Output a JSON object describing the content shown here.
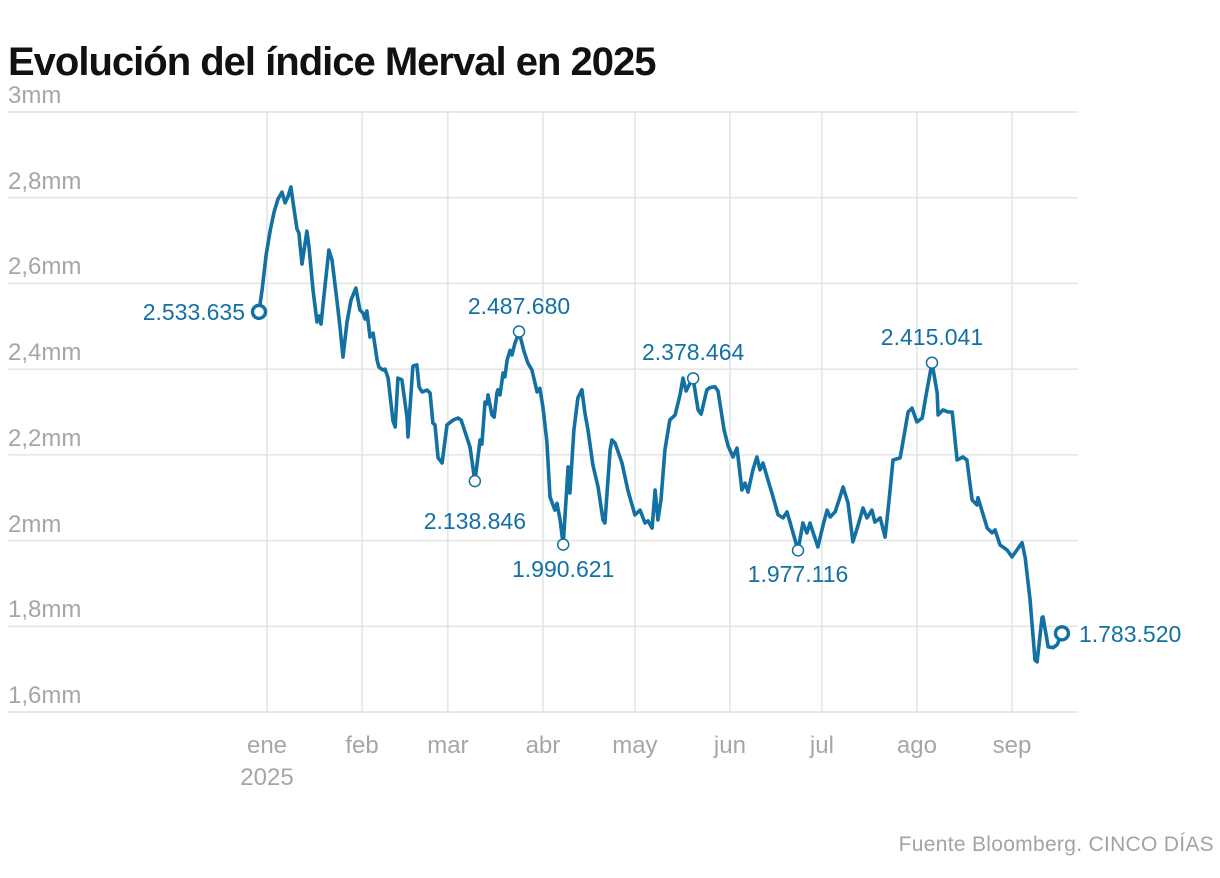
{
  "title": "Evolución del índice Merval en 2025",
  "source": "Fuente Bloomberg. CINCO DÍAS",
  "colors": {
    "line": "#1270a3",
    "annotation_text": "#1270a3",
    "grid": "#e2e2e2",
    "tick_text": "#a6a6a6",
    "title_text": "#111111",
    "source_text": "#a3a3a3",
    "background": "#ffffff",
    "marker_fill": "#ffffff"
  },
  "chart_data": {
    "type": "line",
    "title": "Evolución del índice Merval en 2025",
    "series_name": "Índice Merval",
    "y_axis": {
      "min": 1.6,
      "max": 3.0,
      "grid": true,
      "ticks": [
        {
          "label": "3mm",
          "value": 3.0
        },
        {
          "label": "2,8mm",
          "value": 2.8
        },
        {
          "label": "2,6mm",
          "value": 2.6
        },
        {
          "label": "2,4mm",
          "value": 2.4
        },
        {
          "label": "2,2mm",
          "value": 2.2
        },
        {
          "label": "2mm",
          "value": 2.0
        },
        {
          "label": "1,8mm",
          "value": 1.8
        },
        {
          "label": "1,6mm",
          "value": 1.6
        }
      ]
    },
    "x_axis": {
      "grid": true,
      "ticks": [
        {
          "label": "ene",
          "sublabel": "2025",
          "day": 0
        },
        {
          "label": "feb",
          "day": 31
        },
        {
          "label": "mar",
          "day": 59
        },
        {
          "label": "abr",
          "day": 90
        },
        {
          "label": "may",
          "day": 120
        },
        {
          "label": "jun",
          "day": 151
        },
        {
          "label": "jul",
          "day": 181
        },
        {
          "label": "ago",
          "day": 212
        },
        {
          "label": "sep",
          "day": 243
        }
      ]
    },
    "annotations": [
      {
        "text": "2.533.635",
        "day": -2.6,
        "value": 2.5336,
        "pos": "left",
        "endpoint": true
      },
      {
        "text": "2.487.680",
        "day": 82.2,
        "value": 2.4877,
        "pos": "above"
      },
      {
        "text": "2.138.846",
        "day": 67.8,
        "value": 2.1388,
        "pos": "below",
        "dy": 16
      },
      {
        "text": "1.990.621",
        "day": 96.6,
        "value": 1.9906,
        "pos": "below"
      },
      {
        "text": "2.378.464",
        "day": 139.0,
        "value": 2.3785,
        "pos": "above"
      },
      {
        "text": "1.977.116",
        "day": 173.2,
        "value": 1.9771,
        "pos": "below"
      },
      {
        "text": "2.415.041",
        "day": 216.9,
        "value": 2.415,
        "pos": "above"
      },
      {
        "text": "1.783.520",
        "day": 259.3,
        "value": 1.7835,
        "pos": "right",
        "endpoint": true
      }
    ],
    "series": [
      {
        "name": "Índice Merval",
        "points": [
          [
            -2.6,
            2.5336
          ],
          [
            -1.6,
            2.585
          ],
          [
            -0.3,
            2.666
          ],
          [
            1,
            2.722
          ],
          [
            2.3,
            2.767
          ],
          [
            3.6,
            2.797
          ],
          [
            4.9,
            2.813
          ],
          [
            5.9,
            2.788
          ],
          [
            6.9,
            2.804
          ],
          [
            7.8,
            2.825
          ],
          [
            8.8,
            2.774
          ],
          [
            9.8,
            2.727
          ],
          [
            10.4,
            2.718
          ],
          [
            11.4,
            2.645
          ],
          [
            13,
            2.722
          ],
          [
            13.7,
            2.685
          ],
          [
            15,
            2.585
          ],
          [
            16.3,
            2.51
          ],
          [
            17,
            2.524
          ],
          [
            17.6,
            2.505
          ],
          [
            18.9,
            2.592
          ],
          [
            20.2,
            2.678
          ],
          [
            21.2,
            2.655
          ],
          [
            22.8,
            2.561
          ],
          [
            23.8,
            2.498
          ],
          [
            24.8,
            2.428
          ],
          [
            26.1,
            2.51
          ],
          [
            27.4,
            2.561
          ],
          [
            29,
            2.589
          ],
          [
            30.3,
            2.538
          ],
          [
            31.3,
            2.531
          ],
          [
            32,
            2.517
          ],
          [
            32.6,
            2.536
          ],
          [
            33.6,
            2.475
          ],
          [
            34.6,
            2.484
          ],
          [
            35.9,
            2.421
          ],
          [
            36.5,
            2.405
          ],
          [
            37.8,
            2.398
          ],
          [
            38.5,
            2.4
          ],
          [
            39.5,
            2.379
          ],
          [
            41.1,
            2.279
          ],
          [
            41.8,
            2.265
          ],
          [
            42.7,
            2.379
          ],
          [
            44,
            2.375
          ],
          [
            45.7,
            2.286
          ],
          [
            46,
            2.242
          ],
          [
            47.6,
            2.407
          ],
          [
            48.9,
            2.41
          ],
          [
            49.6,
            2.358
          ],
          [
            50.6,
            2.347
          ],
          [
            52.2,
            2.351
          ],
          [
            53.2,
            2.344
          ],
          [
            54.1,
            2.274
          ],
          [
            54.8,
            2.27
          ],
          [
            55.8,
            2.193
          ],
          [
            57.1,
            2.181
          ],
          [
            58.7,
            2.27
          ],
          [
            60.7,
            2.281
          ],
          [
            62.3,
            2.286
          ],
          [
            63.3,
            2.281
          ],
          [
            64.6,
            2.253
          ],
          [
            66.2,
            2.218
          ],
          [
            67.8,
            2.1388
          ],
          [
            69.5,
            2.235
          ],
          [
            70.1,
            2.225
          ],
          [
            71.1,
            2.323
          ],
          [
            71.8,
            2.319
          ],
          [
            72.1,
            2.34
          ],
          [
            73.4,
            2.293
          ],
          [
            74.1,
            2.288
          ],
          [
            75,
            2.344
          ],
          [
            75.3,
            2.352
          ],
          [
            76,
            2.34
          ],
          [
            77,
            2.391
          ],
          [
            77.6,
            2.382
          ],
          [
            78.3,
            2.421
          ],
          [
            79.3,
            2.444
          ],
          [
            79.9,
            2.433
          ],
          [
            80.9,
            2.461
          ],
          [
            81.5,
            2.472
          ],
          [
            82.2,
            2.4877
          ],
          [
            83.8,
            2.442
          ],
          [
            85.1,
            2.414
          ],
          [
            86.4,
            2.398
          ],
          [
            88.1,
            2.347
          ],
          [
            89,
            2.355
          ],
          [
            90,
            2.312
          ],
          [
            91.3,
            2.23
          ],
          [
            92.3,
            2.102
          ],
          [
            93.3,
            2.083
          ],
          [
            93.9,
            2.071
          ],
          [
            94.6,
            2.087
          ],
          [
            95.6,
            2.048
          ],
          [
            96.6,
            1.9906
          ],
          [
            98.2,
            2.172
          ],
          [
            98.8,
            2.111
          ],
          [
            100.1,
            2.258
          ],
          [
            101.4,
            2.333
          ],
          [
            102.7,
            2.352
          ],
          [
            103.7,
            2.298
          ],
          [
            104.7,
            2.258
          ],
          [
            106.3,
            2.176
          ],
          [
            108,
            2.125
          ],
          [
            109.6,
            2.048
          ],
          [
            110.2,
            2.041
          ],
          [
            111.9,
            2.211
          ],
          [
            112.5,
            2.235
          ],
          [
            113.5,
            2.228
          ],
          [
            115.8,
            2.181
          ],
          [
            117.7,
            2.118
          ],
          [
            120,
            2.06
          ],
          [
            121.7,
            2.071
          ],
          [
            123.3,
            2.041
          ],
          [
            124.3,
            2.046
          ],
          [
            125.6,
            2.029
          ],
          [
            126.6,
            2.118
          ],
          [
            127.5,
            2.048
          ],
          [
            128.5,
            2.095
          ],
          [
            129.8,
            2.211
          ],
          [
            131.4,
            2.281
          ],
          [
            133.1,
            2.293
          ],
          [
            134.7,
            2.34
          ],
          [
            135.7,
            2.379
          ],
          [
            136.7,
            2.349
          ],
          [
            138,
            2.368
          ],
          [
            139,
            2.3785
          ],
          [
            140.6,
            2.305
          ],
          [
            141.6,
            2.295
          ],
          [
            143.5,
            2.352
          ],
          [
            144.5,
            2.357
          ],
          [
            146.1,
            2.359
          ],
          [
            147.1,
            2.349
          ],
          [
            149.1,
            2.258
          ],
          [
            150.4,
            2.221
          ],
          [
            152,
            2.195
          ],
          [
            153.3,
            2.216
          ],
          [
            154.9,
            2.118
          ],
          [
            155.9,
            2.134
          ],
          [
            156.9,
            2.113
          ],
          [
            158.5,
            2.165
          ],
          [
            159.8,
            2.195
          ],
          [
            160.8,
            2.165
          ],
          [
            161.8,
            2.181
          ],
          [
            163.4,
            2.141
          ],
          [
            164.7,
            2.111
          ],
          [
            166.7,
            2.06
          ],
          [
            168.3,
            2.053
          ],
          [
            169.6,
            2.067
          ],
          [
            171.3,
            2.025
          ],
          [
            173.2,
            1.9771
          ],
          [
            174.8,
            2.041
          ],
          [
            176.1,
            2.018
          ],
          [
            177.1,
            2.041
          ],
          [
            178.4,
            2.013
          ],
          [
            179.7,
            1.985
          ],
          [
            181.4,
            2.036
          ],
          [
            182.7,
            2.071
          ],
          [
            183.7,
            2.055
          ],
          [
            185.3,
            2.067
          ],
          [
            186.6,
            2.095
          ],
          [
            187.9,
            2.125
          ],
          [
            189.5,
            2.088
          ],
          [
            191.1,
            1.997
          ],
          [
            192.8,
            2.036
          ],
          [
            194.4,
            2.076
          ],
          [
            195.7,
            2.053
          ],
          [
            197.3,
            2.071
          ],
          [
            198.3,
            2.043
          ],
          [
            200,
            2.053
          ],
          [
            201.6,
            2.008
          ],
          [
            202.9,
            2.095
          ],
          [
            204.2,
            2.188
          ],
          [
            206.5,
            2.193
          ],
          [
            207.1,
            2.216
          ],
          [
            208.1,
            2.258
          ],
          [
            209.1,
            2.3
          ],
          [
            210.4,
            2.309
          ],
          [
            212,
            2.277
          ],
          [
            213.7,
            2.286
          ],
          [
            215,
            2.34
          ],
          [
            216.9,
            2.415
          ],
          [
            218.6,
            2.344
          ],
          [
            218.9,
            2.293
          ],
          [
            220.5,
            2.305
          ],
          [
            222.2,
            2.3
          ],
          [
            223.5,
            2.3
          ],
          [
            225.1,
            2.188
          ],
          [
            227,
            2.195
          ],
          [
            228.3,
            2.188
          ],
          [
            230,
            2.095
          ],
          [
            231.6,
            2.083
          ],
          [
            231.9,
            2.1
          ],
          [
            233.6,
            2.06
          ],
          [
            234.9,
            2.029
          ],
          [
            236.5,
            2.018
          ],
          [
            237.5,
            2.025
          ],
          [
            239.1,
            1.99
          ],
          [
            241.4,
            1.978
          ],
          [
            243,
            1.962
          ],
          [
            244.6,
            1.978
          ],
          [
            246.3,
            1.995
          ],
          [
            247.3,
            1.96
          ],
          [
            248.9,
            1.861
          ],
          [
            250.5,
            1.721
          ],
          [
            251.2,
            1.717
          ],
          [
            252.8,
            1.82
          ],
          [
            253.1,
            1.822
          ],
          [
            254.8,
            1.752
          ],
          [
            256.4,
            1.75
          ],
          [
            257.7,
            1.757
          ],
          [
            259.3,
            1.7835
          ]
        ]
      }
    ]
  }
}
